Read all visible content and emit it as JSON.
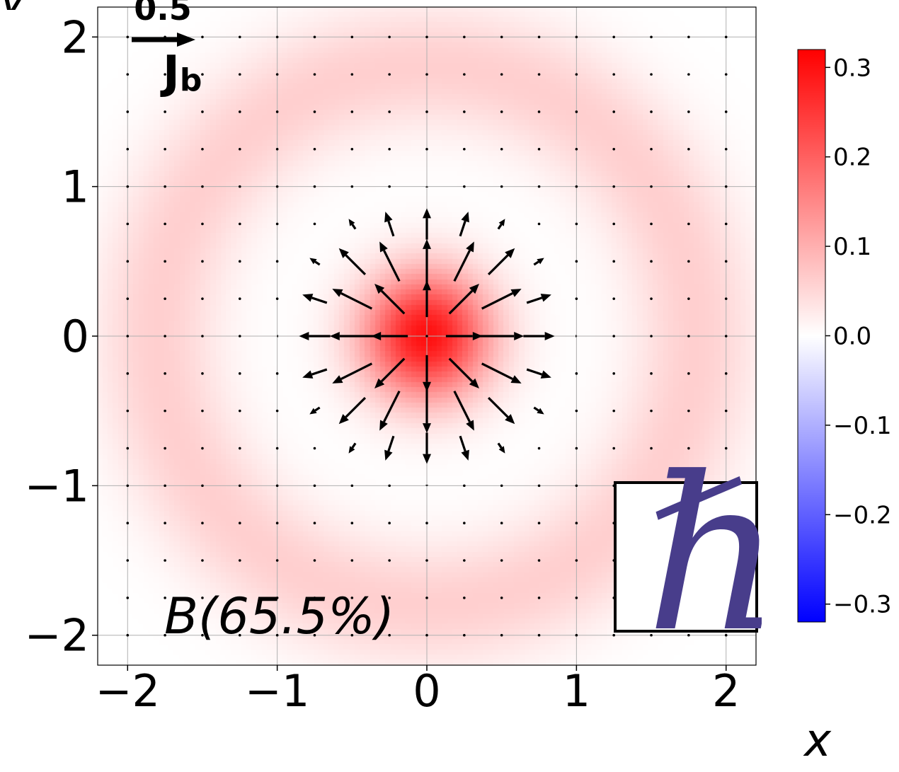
{
  "chart_data": {
    "type": "heatmap",
    "subtype": "scalar field with quiver overlay",
    "xlabel": "x",
    "ylabel": "y",
    "xlim": [
      -2.2,
      2.2
    ],
    "ylim": [
      -2.2,
      2.2
    ],
    "x_ticks": [
      -2,
      -1,
      0,
      1,
      2
    ],
    "y_ticks": [
      -2,
      -1,
      0,
      1,
      2
    ],
    "x_tick_labels": [
      "−2",
      "−1",
      "0",
      "1",
      "2"
    ],
    "y_tick_labels": [
      "−2",
      "−1",
      "0",
      "1",
      "2"
    ],
    "grid": true,
    "colormap": "bwr",
    "colormap_colors": {
      "low": "#0000ff",
      "mid": "#ffffff",
      "high": "#ff0000"
    },
    "colorbar": {
      "vmin": -0.32,
      "vmax": 0.32,
      "ticks": [
        0.3,
        0.2,
        0.1,
        0.0,
        -0.1,
        -0.2,
        -0.3
      ],
      "tick_labels": [
        "0.3",
        "0.2",
        "0.1",
        "0.0",
        "−0.1",
        "−0.2",
        "−0.3"
      ]
    },
    "field": {
      "description_values": "central peak about 0.30 at the origin, near 0 at r about 0.75, outer ring about 0.06 at r about 1.8",
      "center_value": 0.3,
      "core_sigma": 0.3,
      "ring_radius": 1.8,
      "ring_value": 0.06,
      "ring_width": 0.6
    },
    "quiver": {
      "label": "J_b",
      "key_value": 0.5,
      "key_label": "0.5",
      "spacing": 0.25,
      "pattern": "radial outward, maximum magnitude about 0.35 near r = 0.5, vanishing at r about 1.0",
      "peak_radius": 0.5,
      "peak_magnitude": 0.35,
      "color": "#000000"
    },
    "annotation": "B(65.5%)",
    "inset_symbol": "ℏ",
    "inset_symbol_color": "#483d8b"
  }
}
